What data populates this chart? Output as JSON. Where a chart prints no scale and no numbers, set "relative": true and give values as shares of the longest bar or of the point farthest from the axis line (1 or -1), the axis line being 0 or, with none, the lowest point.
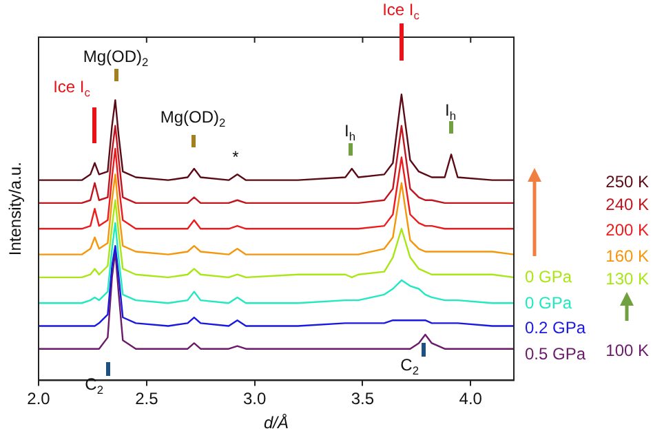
{
  "chart_data": {
    "type": "line",
    "relative": true,
    "xlabel": "d/Å",
    "ylabel": "Intensity/a.u.",
    "xlim": [
      2.0,
      4.2
    ],
    "xticks": [
      {
        "value": 2,
        "label": "2.0"
      },
      {
        "value": 2.5,
        "label": "2.5"
      },
      {
        "value": 3,
        "label": "3.0"
      },
      {
        "value": 3.5,
        "label": "3.5"
      },
      {
        "value": 4,
        "label": "4.0"
      }
    ],
    "x": [
      2.0,
      2.1,
      2.2,
      2.24,
      2.26,
      2.28,
      2.32,
      2.34,
      2.355,
      2.37,
      2.39,
      2.45,
      2.6,
      2.69,
      2.72,
      2.75,
      2.88,
      2.92,
      2.96,
      3.2,
      3.42,
      3.45,
      3.48,
      3.6,
      3.64,
      3.68,
      3.72,
      3.76,
      3.79,
      3.82,
      3.88,
      3.91,
      3.94,
      4.1,
      4.2
    ],
    "series": [
      {
        "name": "250 K",
        "color": "#5a0a14",
        "values": [
          0.7,
          0.7,
          0.7,
          0.72,
          0.76,
          0.72,
          0.73,
          0.89,
          0.98,
          0.86,
          0.73,
          0.71,
          0.7,
          0.71,
          0.74,
          0.71,
          0.7,
          0.72,
          0.7,
          0.7,
          0.71,
          0.74,
          0.71,
          0.72,
          0.76,
          1,
          0.77,
          0.73,
          0.72,
          0.71,
          0.71,
          0.79,
          0.71,
          0.7,
          0.7
        ]
      },
      {
        "name": "240 K",
        "color": "#c0141e",
        "values": [
          0.62,
          0.62,
          0.62,
          0.63,
          0.69,
          0.63,
          0.64,
          0.8,
          0.89,
          0.78,
          0.64,
          0.62,
          0.62,
          0.62,
          0.64,
          0.62,
          0.62,
          0.63,
          0.62,
          0.62,
          0.62,
          0.62,
          0.62,
          0.63,
          0.67,
          0.89,
          0.67,
          0.64,
          0.63,
          0.63,
          0.62,
          0.62,
          0.62,
          0.62,
          0.62
        ]
      },
      {
        "name": "200 K",
        "color": "#ec1c1c",
        "values": [
          0.53,
          0.53,
          0.53,
          0.54,
          0.6,
          0.54,
          0.56,
          0.71,
          0.81,
          0.69,
          0.56,
          0.53,
          0.53,
          0.53,
          0.56,
          0.53,
          0.53,
          0.54,
          0.53,
          0.53,
          0.53,
          0.53,
          0.53,
          0.54,
          0.58,
          0.78,
          0.58,
          0.55,
          0.54,
          0.54,
          0.53,
          0.53,
          0.53,
          0.53,
          0.53
        ]
      },
      {
        "name": "160 K",
        "color": "#f5960a",
        "values": [
          0.44,
          0.44,
          0.44,
          0.46,
          0.5,
          0.46,
          0.48,
          0.63,
          0.72,
          0.6,
          0.47,
          0.45,
          0.44,
          0.45,
          0.47,
          0.45,
          0.44,
          0.46,
          0.44,
          0.44,
          0.44,
          0.44,
          0.44,
          0.46,
          0.5,
          0.69,
          0.49,
          0.46,
          0.45,
          0.45,
          0.45,
          0.45,
          0.45,
          0.45,
          0.44
        ]
      },
      {
        "name": "130 K",
        "color": "#a8e614",
        "values": [
          0.36,
          0.36,
          0.36,
          0.37,
          0.39,
          0.37,
          0.4,
          0.54,
          0.63,
          0.52,
          0.39,
          0.37,
          0.36,
          0.37,
          0.39,
          0.37,
          0.36,
          0.37,
          0.36,
          0.37,
          0.37,
          0.36,
          0.37,
          0.38,
          0.43,
          0.53,
          0.43,
          0.39,
          0.38,
          0.37,
          0.37,
          0.37,
          0.37,
          0.37,
          0.36
        ]
      },
      {
        "color": "#20e8c0",
        "values": [
          0.27,
          0.27,
          0.27,
          0.28,
          0.29,
          0.28,
          0.31,
          0.46,
          0.55,
          0.43,
          0.3,
          0.28,
          0.27,
          0.28,
          0.31,
          0.28,
          0.27,
          0.29,
          0.27,
          0.27,
          0.28,
          0.28,
          0.28,
          0.3,
          0.32,
          0.35,
          0.33,
          0.32,
          0.3,
          0.29,
          0.28,
          0.28,
          0.28,
          0.27,
          0.27
        ]
      },
      {
        "color": "#1818e0",
        "values": [
          0.19,
          0.19,
          0.19,
          0.19,
          0.19,
          0.2,
          0.23,
          0.4,
          0.47,
          0.37,
          0.22,
          0.2,
          0.19,
          0.2,
          0.22,
          0.2,
          0.19,
          0.21,
          0.19,
          0.19,
          0.2,
          0.2,
          0.2,
          0.2,
          0.21,
          0.21,
          0.21,
          0.21,
          0.21,
          0.2,
          0.2,
          0.2,
          0.2,
          0.19,
          0.19
        ]
      },
      {
        "name": "100 K",
        "color": "#6a1a6a",
        "values": [
          0.11,
          0.11,
          0.11,
          0.11,
          0.11,
          0.11,
          0.15,
          0.36,
          0.45,
          0.31,
          0.14,
          0.11,
          0.11,
          0.11,
          0.13,
          0.11,
          0.11,
          0.12,
          0.11,
          0.11,
          0.11,
          0.11,
          0.11,
          0.11,
          0.11,
          0.11,
          0.11,
          0.13,
          0.16,
          0.13,
          0.11,
          0.11,
          0.11,
          0.11,
          0.11
        ]
      }
    ],
    "annotations": [
      "Ice I$_{c}$",
      "Mg(OD)$_{2}$",
      "Mg(OD)$_{2}$",
      "*",
      "I$_{h}$",
      "Ice I$_{c}$",
      "I$_{h}$",
      "C$_{2}$",
      "C$_{2}$",
      "0 GPa",
      "0 GPa",
      "0.2 GPa",
      "0.5 GPa"
    ]
  }
}
